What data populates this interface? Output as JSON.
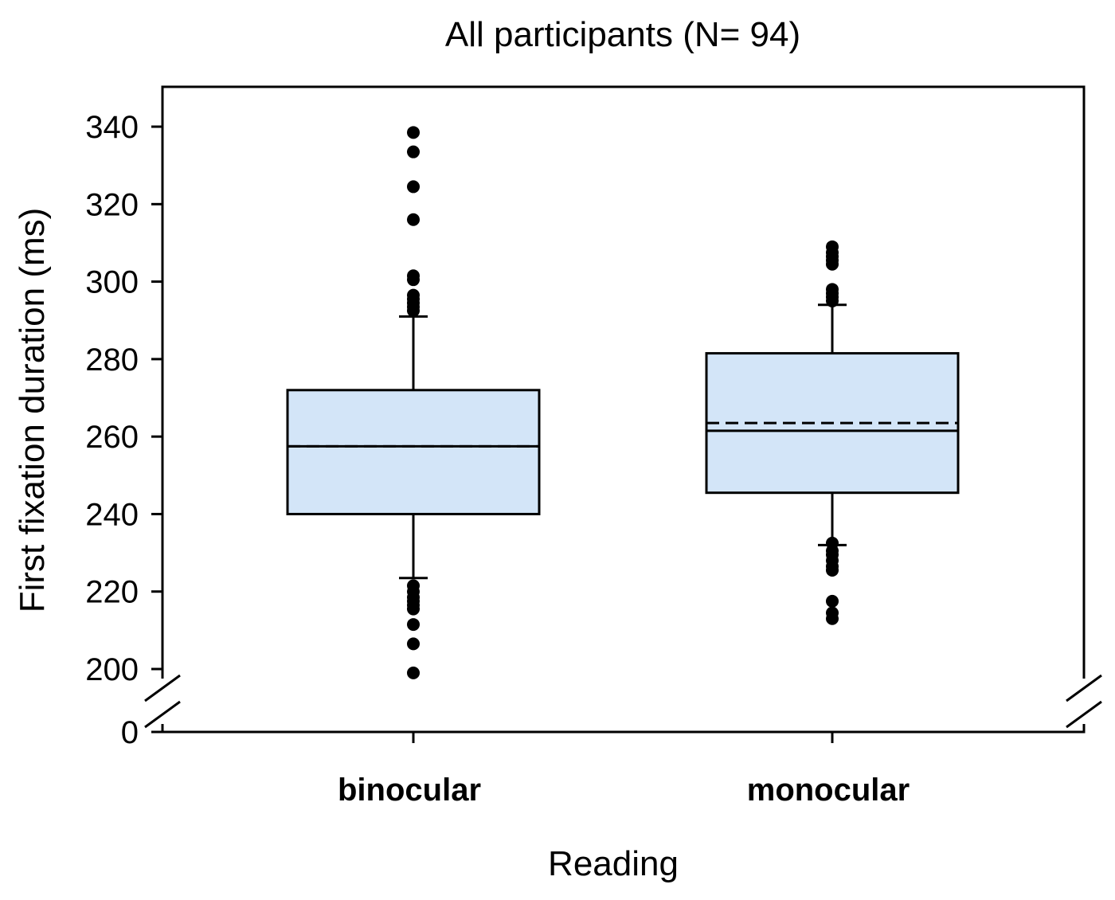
{
  "chart_data": {
    "type": "box",
    "title": "All participants (N= 94)",
    "xlabel": "Reading",
    "ylabel": "First fixation duration (ms)",
    "axis_break": {
      "from": 0,
      "to": 200
    },
    "yticks": [
      0,
      200,
      220,
      240,
      260,
      280,
      300,
      320,
      340
    ],
    "ytick_labels": [
      "0",
      "200",
      "220",
      "240",
      "260",
      "280",
      "300",
      "320",
      "340"
    ],
    "ylim_upper": 350,
    "categories": [
      "binocular",
      "monocular"
    ],
    "boxes": [
      {
        "name": "binocular",
        "whisker_low": 223.5,
        "q1": 240,
        "median": 257.5,
        "mean": 257.5,
        "q3": 272,
        "whisker_high": 291,
        "outliers": [
          199,
          206.5,
          211.5,
          215.5,
          216.5,
          217.5,
          218.5,
          220,
          221.5,
          292.5,
          293.5,
          294.5,
          295.5,
          296.5,
          300.5,
          301.5,
          316,
          324.5,
          333.5,
          338.5
        ]
      },
      {
        "name": "monocular",
        "whisker_low": 232,
        "q1": 245.5,
        "median": 261.5,
        "mean": 263.5,
        "q3": 281.5,
        "whisker_high": 294,
        "outliers": [
          213,
          214.5,
          217.5,
          225.5,
          226.5,
          228,
          229.5,
          230.5,
          232.5,
          295,
          296,
          297,
          298,
          304.5,
          305.5,
          306.5,
          307.5,
          309
        ]
      }
    ],
    "box_fill": "#d3e5f8",
    "stroke": "#000000"
  }
}
